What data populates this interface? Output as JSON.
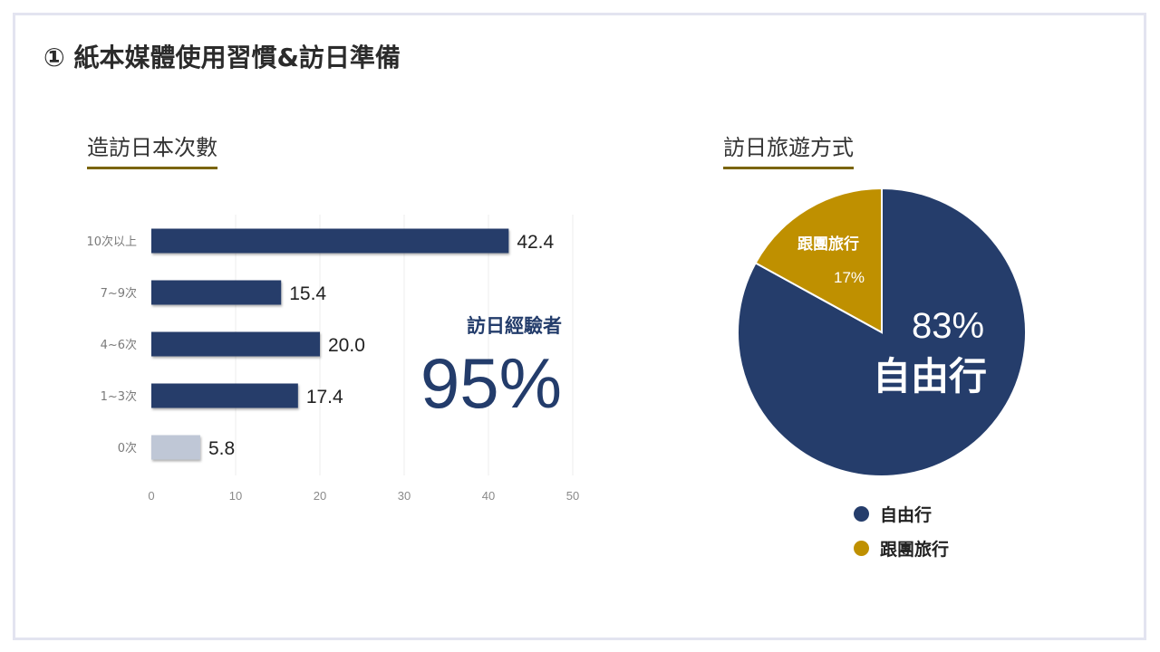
{
  "slide": {
    "title": "① 紙本媒體使用習慣&訪日準備"
  },
  "left_section": {
    "title": "造訪日本次數",
    "callout_label": "訪日經驗者",
    "callout_value": "95%"
  },
  "right_section": {
    "title": "訪日旅遊方式",
    "main_label_pct": "83%",
    "main_label_text": "自由行",
    "minor_label_text": "跟團旅行",
    "minor_label_pct": "17%"
  },
  "colors": {
    "navy": "#253d6b",
    "light": "#bfc7d6",
    "gold": "#bf9000",
    "accent_line": "#7a6400"
  },
  "chart_data": [
    {
      "type": "bar",
      "orientation": "horizontal",
      "title": "造訪日本次數",
      "categories": [
        "10次以上",
        "7~9次",
        "4~6次",
        "1~3次",
        "0次"
      ],
      "values": [
        42.4,
        15.4,
        20.0,
        17.4,
        5.8
      ],
      "value_labels": [
        "42.4",
        "15.4",
        "20.0",
        "17.4",
        "5.8"
      ],
      "xlim": [
        0,
        50
      ],
      "xticks": [
        "0",
        "10",
        "20",
        "30",
        "40",
        "50"
      ],
      "grid": true
    },
    {
      "type": "pie",
      "title": "訪日旅遊方式",
      "labels": [
        "自由行",
        "跟團旅行"
      ],
      "values": [
        83,
        17
      ],
      "colors": [
        "#253d6b",
        "#bf9000"
      ],
      "legend": "bottom"
    }
  ]
}
